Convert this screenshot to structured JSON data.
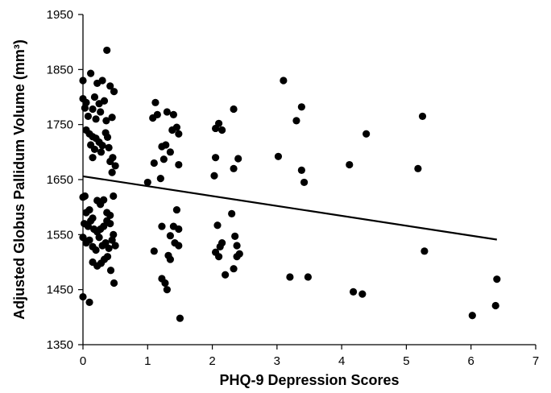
{
  "chart_data": {
    "type": "scatter",
    "title": "",
    "xlabel": "PHQ-9 Depression Scores",
    "ylabel": "Adjusted Globus Pallidum Volume (mm³)",
    "xlim": [
      0,
      7
    ],
    "ylim": [
      1350,
      1950
    ],
    "x_ticks": [
      0,
      1,
      2,
      3,
      4,
      5,
      6,
      7
    ],
    "y_ticks": [
      1350,
      1450,
      1550,
      1650,
      1750,
      1850,
      1950
    ],
    "grid": false,
    "legend": "none",
    "colors": {
      "points": "#000000",
      "trendline": "#000000",
      "axis": "#000000"
    },
    "trendline": {
      "x": [
        0,
        6.4
      ],
      "y": [
        1656,
        1541
      ]
    },
    "points": [
      [
        0.0,
        1830
      ],
      [
        0.0,
        1797
      ],
      [
        0.03,
        1780
      ],
      [
        0.05,
        1790
      ],
      [
        0.12,
        1843
      ],
      [
        0.18,
        1800
      ],
      [
        0.25,
        1788
      ],
      [
        0.22,
        1825
      ],
      [
        0.3,
        1830
      ],
      [
        0.37,
        1885
      ],
      [
        0.42,
        1820
      ],
      [
        0.48,
        1810
      ],
      [
        0.15,
        1778
      ],
      [
        0.27,
        1773
      ],
      [
        0.33,
        1793
      ],
      [
        0.08,
        1765
      ],
      [
        0.2,
        1760
      ],
      [
        0.36,
        1757
      ],
      [
        0.45,
        1763
      ],
      [
        0.05,
        1740
      ],
      [
        0.1,
        1733
      ],
      [
        0.15,
        1728
      ],
      [
        0.2,
        1725
      ],
      [
        0.25,
        1718
      ],
      [
        0.3,
        1712
      ],
      [
        0.35,
        1735
      ],
      [
        0.12,
        1713
      ],
      [
        0.18,
        1705
      ],
      [
        0.28,
        1700
      ],
      [
        0.4,
        1708
      ],
      [
        0.15,
        1690
      ],
      [
        0.42,
        1683
      ],
      [
        0.46,
        1690
      ],
      [
        0.5,
        1675
      ],
      [
        0.45,
        1663
      ],
      [
        0.38,
        1727
      ],
      [
        0.0,
        1618
      ],
      [
        0.03,
        1620
      ],
      [
        0.05,
        1590
      ],
      [
        0.1,
        1595
      ],
      [
        0.15,
        1580
      ],
      [
        0.22,
        1612
      ],
      [
        0.27,
        1605
      ],
      [
        0.32,
        1613
      ],
      [
        0.37,
        1590
      ],
      [
        0.42,
        1585
      ],
      [
        0.47,
        1620
      ],
      [
        0.02,
        1570
      ],
      [
        0.08,
        1565
      ],
      [
        0.12,
        1575
      ],
      [
        0.17,
        1560
      ],
      [
        0.22,
        1555
      ],
      [
        0.27,
        1560
      ],
      [
        0.32,
        1565
      ],
      [
        0.37,
        1575
      ],
      [
        0.42,
        1570
      ],
      [
        0.47,
        1550
      ],
      [
        0.0,
        1545
      ],
      [
        0.05,
        1535
      ],
      [
        0.1,
        1540
      ],
      [
        0.15,
        1528
      ],
      [
        0.2,
        1522
      ],
      [
        0.25,
        1545
      ],
      [
        0.3,
        1530
      ],
      [
        0.35,
        1535
      ],
      [
        0.4,
        1525
      ],
      [
        0.45,
        1540
      ],
      [
        0.5,
        1530
      ],
      [
        0.15,
        1500
      ],
      [
        0.22,
        1493
      ],
      [
        0.28,
        1498
      ],
      [
        0.33,
        1505
      ],
      [
        0.38,
        1510
      ],
      [
        0.43,
        1485
      ],
      [
        0.48,
        1462
      ],
      [
        0.0,
        1437
      ],
      [
        0.1,
        1427
      ],
      [
        1.08,
        1762
      ],
      [
        1.12,
        1790
      ],
      [
        1.15,
        1768
      ],
      [
        1.3,
        1773
      ],
      [
        1.38,
        1740
      ],
      [
        1.4,
        1768
      ],
      [
        1.45,
        1745
      ],
      [
        1.48,
        1733
      ],
      [
        1.22,
        1710
      ],
      [
        1.28,
        1713
      ],
      [
        1.35,
        1700
      ],
      [
        1.25,
        1687
      ],
      [
        1.1,
        1680
      ],
      [
        1.48,
        1677
      ],
      [
        1.0,
        1645
      ],
      [
        1.2,
        1652
      ],
      [
        1.22,
        1565
      ],
      [
        1.4,
        1565
      ],
      [
        1.45,
        1595
      ],
      [
        1.48,
        1560
      ],
      [
        1.35,
        1548
      ],
      [
        1.42,
        1535
      ],
      [
        1.48,
        1530
      ],
      [
        1.1,
        1520
      ],
      [
        1.32,
        1512
      ],
      [
        1.35,
        1505
      ],
      [
        1.22,
        1470
      ],
      [
        1.27,
        1462
      ],
      [
        1.3,
        1450
      ],
      [
        1.5,
        1398
      ],
      [
        2.05,
        1743
      ],
      [
        2.1,
        1752
      ],
      [
        2.15,
        1740
      ],
      [
        2.33,
        1778
      ],
      [
        2.05,
        1690
      ],
      [
        2.4,
        1688
      ],
      [
        2.33,
        1670
      ],
      [
        2.03,
        1657
      ],
      [
        2.08,
        1567
      ],
      [
        2.15,
        1535
      ],
      [
        2.12,
        1528
      ],
      [
        2.3,
        1588
      ],
      [
        2.35,
        1547
      ],
      [
        2.38,
        1530
      ],
      [
        2.05,
        1518
      ],
      [
        2.1,
        1510
      ],
      [
        2.42,
        1515
      ],
      [
        2.38,
        1510
      ],
      [
        2.2,
        1477
      ],
      [
        2.33,
        1488
      ],
      [
        3.1,
        1830
      ],
      [
        3.3,
        1757
      ],
      [
        3.38,
        1782
      ],
      [
        3.02,
        1692
      ],
      [
        3.38,
        1667
      ],
      [
        3.42,
        1645
      ],
      [
        3.2,
        1473
      ],
      [
        3.48,
        1473
      ],
      [
        4.12,
        1677
      ],
      [
        4.38,
        1733
      ],
      [
        4.18,
        1446
      ],
      [
        4.32,
        1442
      ],
      [
        5.25,
        1765
      ],
      [
        5.18,
        1670
      ],
      [
        5.28,
        1520
      ],
      [
        6.02,
        1403
      ],
      [
        6.38,
        1421
      ],
      [
        6.4,
        1469
      ]
    ]
  }
}
